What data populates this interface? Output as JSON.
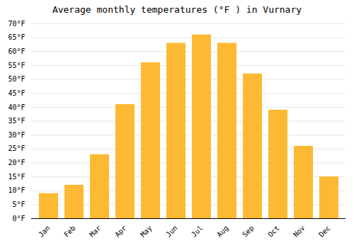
{
  "chart_data": {
    "type": "bar",
    "title": "Average monthly temperatures (°F ) in Vurnary",
    "categories": [
      "Jan",
      "Feb",
      "Mar",
      "Apr",
      "May",
      "Jun",
      "Jul",
      "Aug",
      "Sep",
      "Oct",
      "Nov",
      "Dec"
    ],
    "values": [
      9,
      12,
      23,
      41,
      56,
      63,
      66,
      63,
      52,
      39,
      26,
      15
    ],
    "color": "#FDB933",
    "ylim": [
      0,
      70
    ],
    "yticks": [
      {
        "value": 0,
        "label": "0°F"
      },
      {
        "value": 5,
        "label": "5°F"
      },
      {
        "value": 10,
        "label": "10°F"
      },
      {
        "value": 15,
        "label": "15°F"
      },
      {
        "value": 20,
        "label": "20°F"
      },
      {
        "value": 25,
        "label": "25°F"
      },
      {
        "value": 30,
        "label": "30°F"
      },
      {
        "value": 35,
        "label": "35°F"
      },
      {
        "value": 40,
        "label": "40°F"
      },
      {
        "value": 45,
        "label": "45°F"
      },
      {
        "value": 50,
        "label": "50°F"
      },
      {
        "value": 55,
        "label": "55°F"
      },
      {
        "value": 60,
        "label": "60°F"
      },
      {
        "value": 65,
        "label": "65°F"
      },
      {
        "value": 70,
        "label": "70°F"
      }
    ],
    "grid": true
  }
}
